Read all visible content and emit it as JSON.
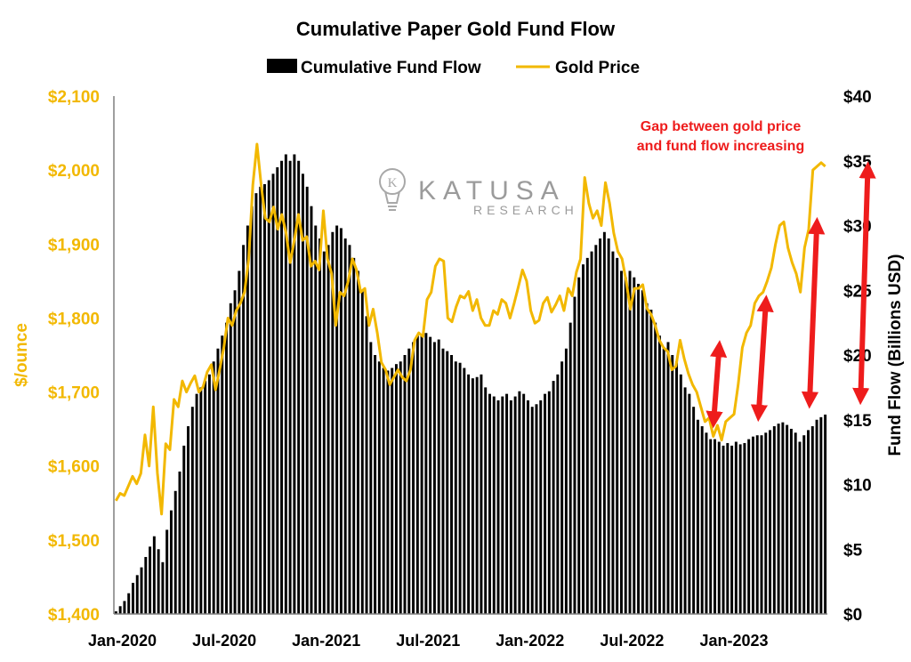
{
  "colors": {
    "gold": "#F2B800",
    "bars": "#000000",
    "arrow": "#EE1C1C",
    "annotation": "#EE1C1C"
  },
  "chart_data": {
    "type": "bar",
    "title": "Cumulative Paper Gold Fund Flow",
    "legend": {
      "placement": "top-center",
      "entries": [
        "Cumulative Fund Flow",
        "Gold Price"
      ]
    },
    "y_left": {
      "label": "$/ounce",
      "range": [
        1400,
        2100
      ],
      "ticks": [
        "$1,400",
        "$1,500",
        "$1,600",
        "$1,700",
        "$1,800",
        "$1,900",
        "$2,000",
        "$2,100"
      ]
    },
    "y_right": {
      "label": "Fund Flow (Billions USD)",
      "range": [
        0,
        40
      ],
      "ticks": [
        "$0",
        "$5",
        "$10",
        "$15",
        "$20",
        "$25",
        "$30",
        "$35",
        "$40"
      ]
    },
    "x_ticks": [
      "Jan-2020",
      "Jul-2020",
      "Jan-2021",
      "Jul-2021",
      "Jan-2022",
      "Jul-2022",
      "Jan-2023"
    ],
    "grid": false,
    "series": [
      {
        "name": "Cumulative Fund Flow",
        "kind": "bar",
        "axis": "right",
        "values": [
          0.2,
          0.6,
          1.0,
          1.6,
          2.4,
          3.0,
          3.6,
          4.4,
          5.2,
          6.0,
          5.0,
          4.0,
          6.5,
          8.0,
          9.5,
          11.0,
          13.0,
          14.5,
          16.0,
          17.0,
          17.5,
          18.0,
          18.5,
          19.5,
          20.5,
          21.5,
          22.5,
          24.0,
          25.0,
          26.5,
          28.5,
          30.0,
          31.5,
          32.5,
          33.0,
          33.2,
          33.5,
          34.0,
          34.5,
          35.0,
          35.5,
          35.0,
          35.5,
          35.0,
          34.0,
          33.0,
          31.5,
          30.0,
          29.0,
          28.0,
          28.5,
          29.5,
          30.0,
          29.8,
          29.0,
          28.5,
          27.5,
          26.5,
          25.0,
          23.0,
          21.0,
          20.0,
          19.5,
          19.0,
          18.8,
          19.0,
          19.3,
          19.5,
          20.0,
          20.5,
          21.0,
          21.5,
          21.6,
          21.7,
          21.4,
          21.0,
          21.2,
          20.5,
          20.3,
          20.0,
          19.5,
          19.4,
          19.0,
          18.5,
          18.2,
          18.3,
          18.5,
          17.5,
          17.0,
          16.8,
          16.5,
          16.8,
          17.0,
          16.5,
          16.8,
          17.2,
          17.0,
          16.5,
          16.0,
          16.2,
          16.5,
          17.0,
          17.2,
          18.0,
          18.5,
          19.5,
          20.5,
          22.5,
          24.5,
          26.0,
          27.0,
          27.5,
          28.0,
          28.5,
          29.0,
          29.5,
          29.0,
          28.0,
          27.5,
          26.5,
          26.0,
          26.5,
          26.0,
          25.5,
          25.0,
          24.0,
          23.5,
          22.5,
          21.5,
          20.5,
          21.0,
          20.0,
          19.5,
          18.5,
          17.5,
          17.0,
          16.0,
          15.0,
          14.5,
          14.0,
          13.5,
          13.5,
          13.3,
          13.0,
          13.2,
          13.0,
          13.3,
          13.1,
          13.2,
          13.5,
          13.7,
          13.8,
          13.8,
          14.0,
          14.2,
          14.5,
          14.7,
          14.8,
          14.6,
          14.3,
          14.0,
          13.3,
          13.8,
          14.2,
          14.5,
          15.0,
          15.2,
          15.4
        ]
      },
      {
        "name": "Gold Price",
        "kind": "line",
        "axis": "left",
        "values": [
          1553,
          1563,
          1560,
          1573,
          1586,
          1576,
          1590,
          1642,
          1600,
          1680,
          1590,
          1535,
          1630,
          1622,
          1690,
          1680,
          1715,
          1700,
          1712,
          1722,
          1700,
          1707,
          1727,
          1737,
          1703,
          1730,
          1760,
          1800,
          1790,
          1810,
          1820,
          1835,
          1880,
          1980,
          2035,
          1980,
          1935,
          1930,
          1950,
          1920,
          1940,
          1915,
          1875,
          1905,
          1940,
          1905,
          1910,
          1870,
          1877,
          1865,
          1945,
          1880,
          1860,
          1790,
          1835,
          1830,
          1850,
          1880,
          1865,
          1835,
          1840,
          1790,
          1812,
          1780,
          1740,
          1730,
          1710,
          1720,
          1730,
          1720,
          1715,
          1730,
          1770,
          1780,
          1775,
          1825,
          1835,
          1870,
          1880,
          1877,
          1800,
          1795,
          1815,
          1830,
          1827,
          1836,
          1810,
          1825,
          1800,
          1790,
          1790,
          1810,
          1805,
          1825,
          1820,
          1800,
          1820,
          1842,
          1865,
          1850,
          1810,
          1793,
          1797,
          1820,
          1828,
          1808,
          1818,
          1830,
          1810,
          1840,
          1830,
          1862,
          1880,
          1990,
          1955,
          1935,
          1945,
          1925,
          1983,
          1955,
          1915,
          1890,
          1880,
          1850,
          1812,
          1840,
          1840,
          1845,
          1813,
          1805,
          1790,
          1770,
          1760,
          1755,
          1730,
          1735,
          1770,
          1745,
          1725,
          1710,
          1700,
          1680,
          1660,
          1665,
          1640,
          1655,
          1635,
          1660,
          1665,
          1670,
          1710,
          1760,
          1780,
          1790,
          1820,
          1830,
          1835,
          1850,
          1868,
          1900,
          1925,
          1930,
          1895,
          1875,
          1860,
          1835,
          1895,
          1920,
          2000,
          2005,
          2010,
          2005
        ]
      }
    ],
    "annotations": {
      "text_line1": "Gap between gold price",
      "text_line2": "and fund flow increasing",
      "arrows": 4
    }
  },
  "watermark": {
    "name": "KATUSA",
    "sub": "RESEARCH"
  }
}
